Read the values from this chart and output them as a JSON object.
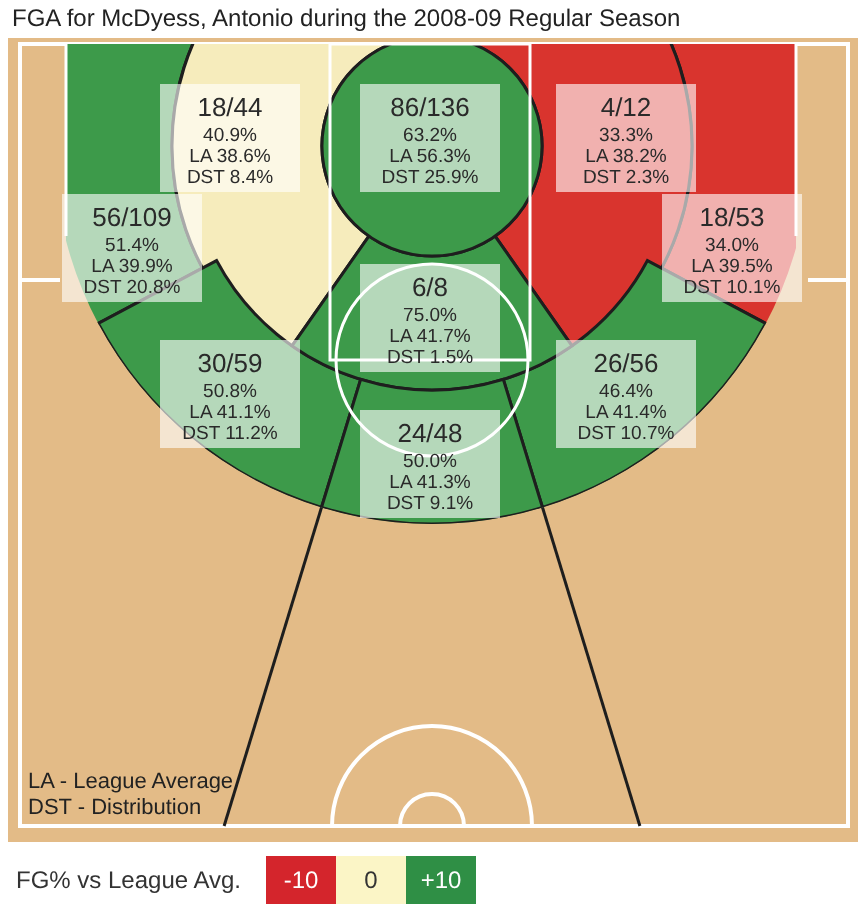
{
  "chart_data": {
    "type": "other",
    "title": "FGA for McDyess, Antonio during the 2008-09 Regular Season",
    "categories": [
      null,
      null,
      null,
      null,
      null,
      null,
      null,
      null,
      null
    ],
    "values": [
      40.9,
      63.2,
      33.3,
      51.4,
      34.0,
      75.0,
      50.8,
      46.4,
      50.0
    ],
    "value_labels": [
      "18/44\n40.9%\nLA 38.6%\nDST 8.4%",
      "86/136\n63.2%\nLA 56.3%\nDST 25.9%",
      "4/12\n33.3%\nLA 38.2%\nDST 2.3%",
      "56/109\n51.4%\nLA 39.9%\nDST 20.8%",
      "18/53\n34.0%\nLA 39.5%\nDST 10.1%",
      "6/8\n75.0%\nLA 41.7%\nDST 1.5%",
      "30/59\n50.8%\nLA 41.1%\nDST 11.2%",
      "26/56\n46.4%\nLA 41.4%\nDST 10.7%",
      "24/48\n50.0%\nLA 41.3%\nDST 9.1%"
    ],
    "colors": [
      "#f6ecbc",
      "#3d9a4a",
      "#d9342e",
      "#3d9a4a",
      "#d9342e",
      "#3d9a4a",
      "#3d9a4a",
      "#3d9a4a",
      "#3d9a4a"
    ],
    "clabel": "FG% vs League Avg.",
    "annotations": [
      "LA - League Average",
      "DST - Distribution",
      "-10",
      "0",
      "+10"
    ]
  }
}
